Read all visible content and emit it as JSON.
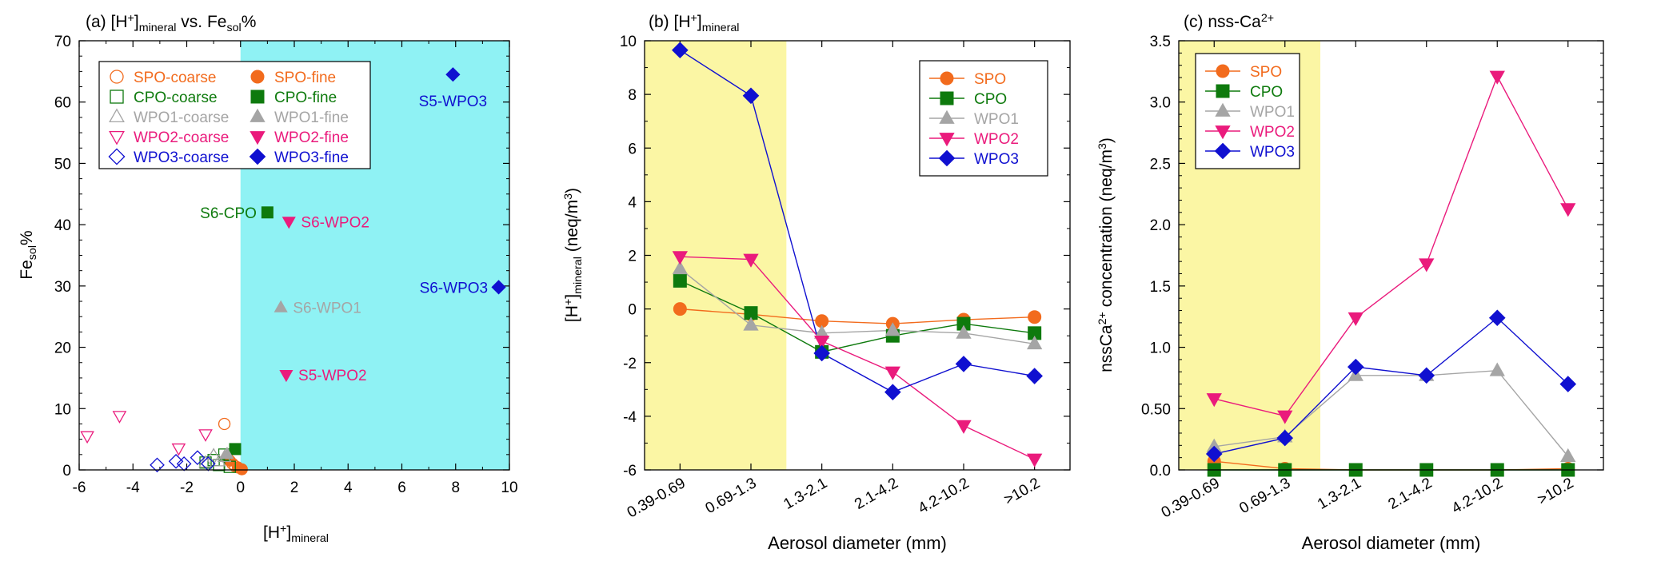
{
  "colors": {
    "SPO": "#f26b1d",
    "CPO": "#0e7a0d",
    "WPO1": "#a5a5a5",
    "WPO2": "#ea1b7c",
    "WPO3": "#1010d0",
    "cyan": "#8ff2f4",
    "yellow": "#fbf6a4",
    "axis": "#000000"
  },
  "chart_data": [
    {
      "id": "a",
      "type": "scatter",
      "title_parts": [
        "(a) [H",
        "+",
        "]",
        "mineral",
        " vs. Fe",
        "sol",
        "%"
      ],
      "xlabel_parts": [
        "[H",
        "+",
        "]",
        "mineral"
      ],
      "ylabel_parts": [
        "Fe",
        "sol",
        "%"
      ],
      "xlim": [
        -6,
        10
      ],
      "ylim": [
        0,
        70
      ],
      "xticks": [
        -6,
        -4,
        -2,
        0,
        2,
        4,
        6,
        8,
        10
      ],
      "xtick_labels": [
        "-6",
        "-4",
        "-2",
        "0",
        "2",
        "4",
        "6",
        "8",
        "10"
      ],
      "yticks": [
        0,
        10,
        20,
        30,
        40,
        50,
        60,
        70
      ],
      "ytick_labels": [
        "0",
        "10",
        "20",
        "30",
        "40",
        "50",
        "60",
        "70"
      ],
      "shaded_region": {
        "x_from": 0,
        "x_to": 10,
        "color_key": "cyan"
      },
      "legend": {
        "position": "top-left",
        "entries": [
          {
            "label": "SPO-coarse",
            "color_key": "SPO",
            "marker": "circle",
            "filled": false
          },
          {
            "label": "SPO-fine",
            "color_key": "SPO",
            "marker": "circle",
            "filled": true
          },
          {
            "label": "CPO-coarse",
            "color_key": "CPO",
            "marker": "square",
            "filled": false
          },
          {
            "label": "CPO-fine",
            "color_key": "CPO",
            "marker": "square",
            "filled": true
          },
          {
            "label": "WPO1-coarse",
            "color_key": "WPO1",
            "marker": "triangle-up",
            "filled": false
          },
          {
            "label": "WPO1-fine",
            "color_key": "WPO1",
            "marker": "triangle-up",
            "filled": true
          },
          {
            "label": "WPO2-coarse",
            "color_key": "WPO2",
            "marker": "triangle-down",
            "filled": false
          },
          {
            "label": "WPO2-fine",
            "color_key": "WPO2",
            "marker": "triangle-down",
            "filled": true
          },
          {
            "label": "WPO3-coarse",
            "color_key": "WPO3",
            "marker": "diamond",
            "filled": false
          },
          {
            "label": "WPO3-fine",
            "color_key": "WPO3",
            "marker": "diamond",
            "filled": true
          }
        ]
      },
      "series": [
        {
          "name": "SPO-coarse",
          "color_key": "SPO",
          "marker": "circle",
          "filled": false,
          "points": [
            [
              -0.6,
              7.5
            ],
            [
              -0.5,
              2.0
            ],
            [
              -0.3,
              1.0
            ],
            [
              -0.2,
              0.6
            ]
          ]
        },
        {
          "name": "SPO-fine",
          "color_key": "SPO",
          "marker": "circle",
          "filled": true,
          "points": [
            [
              -0.4,
              1.5
            ],
            [
              -0.1,
              0.4
            ],
            [
              0.05,
              0.1
            ]
          ]
        },
        {
          "name": "CPO-coarse",
          "color_key": "CPO",
          "marker": "square",
          "filled": false,
          "points": [
            [
              -1.3,
              1.2
            ],
            [
              -1.0,
              1.6
            ],
            [
              -0.8,
              0.8
            ],
            [
              -0.6,
              2.5
            ],
            [
              -0.4,
              0.5
            ]
          ]
        },
        {
          "name": "CPO-fine",
          "color_key": "CPO",
          "marker": "square",
          "filled": true,
          "points": [
            [
              -0.2,
              3.4
            ],
            [
              1.0,
              42.0
            ]
          ]
        },
        {
          "name": "WPO1-coarse",
          "color_key": "WPO1",
          "marker": "triangle-up",
          "filled": false,
          "points": [
            [
              -1.3,
              1.2
            ],
            [
              -1.0,
              2.4
            ],
            [
              -0.8,
              1.4
            ],
            [
              -0.6,
              2.1
            ]
          ]
        },
        {
          "name": "WPO1-fine",
          "color_key": "WPO1",
          "marker": "triangle-up",
          "filled": true,
          "points": [
            [
              -0.5,
              2.6
            ],
            [
              1.5,
              26.5
            ]
          ]
        },
        {
          "name": "WPO2-coarse",
          "color_key": "WPO2",
          "marker": "triangle-down",
          "filled": false,
          "points": [
            [
              -5.7,
              5.5
            ],
            [
              -4.5,
              8.8
            ],
            [
              -2.3,
              3.5
            ],
            [
              -1.3,
              5.8
            ]
          ]
        },
        {
          "name": "WPO2-fine",
          "color_key": "WPO2",
          "marker": "triangle-down",
          "filled": true,
          "points": [
            [
              1.7,
              15.5
            ],
            [
              1.8,
              40.5
            ]
          ]
        },
        {
          "name": "WPO3-coarse",
          "color_key": "WPO3",
          "marker": "diamond",
          "filled": false,
          "points": [
            [
              -3.1,
              0.8
            ],
            [
              -2.4,
              1.4
            ],
            [
              -2.1,
              1.0
            ],
            [
              -1.6,
              2.0
            ],
            [
              -1.2,
              1.0
            ]
          ]
        },
        {
          "name": "WPO3-fine",
          "color_key": "WPO3",
          "marker": "diamond",
          "filled": true,
          "points": [
            [
              7.9,
              64.5
            ],
            [
              9.6,
              29.8
            ]
          ]
        }
      ],
      "annotations": [
        {
          "text": "S6-CPO",
          "color_key": "CPO",
          "x": 1.0,
          "y": 42.0,
          "anchor": "end",
          "dx": -0.4
        },
        {
          "text": "S6-WPO2",
          "color_key": "WPO2",
          "x": 1.8,
          "y": 40.5,
          "anchor": "start",
          "dx": 0.45
        },
        {
          "text": "S6-WPO1",
          "color_key": "WPO1",
          "x": 1.5,
          "y": 26.5,
          "anchor": "start",
          "dx": 0.45
        },
        {
          "text": "S5-WPO2",
          "color_key": "WPO2",
          "x": 1.7,
          "y": 15.5,
          "anchor": "start",
          "dx": 0.45
        },
        {
          "text": "S5-WPO3",
          "color_key": "WPO3",
          "x": 7.9,
          "y": 64.5,
          "anchor": "middle",
          "dx": 0,
          "dy": -4.3
        },
        {
          "text": "S6-WPO3",
          "color_key": "WPO3",
          "x": 9.6,
          "y": 29.8,
          "anchor": "end",
          "dx": -0.4
        }
      ]
    },
    {
      "id": "b",
      "type": "line",
      "title_parts": [
        "(b) [H",
        "+",
        "]",
        "mineral"
      ],
      "xlabel": "Aerosol diameter (mm)",
      "ylabel_parts": [
        "[H",
        "+",
        "]",
        "mineral",
        " (neq/m",
        "3",
        ")"
      ],
      "categories": [
        "0.39-0.69",
        "0.69-1.3",
        "1.3-2.1",
        "2.1-4.2",
        "4.2-10.2",
        ">10.2"
      ],
      "ylim": [
        -6,
        10
      ],
      "yticks": [
        -6,
        -4,
        -2,
        0,
        2,
        4,
        6,
        8,
        10
      ],
      "ytick_labels": [
        "-6",
        "-4",
        "-2",
        "0",
        "2",
        "4",
        "6",
        "8",
        "10"
      ],
      "shaded_categories": [
        0,
        1
      ],
      "legend": {
        "position": "top-right",
        "entries": [
          "SPO",
          "CPO",
          "WPO1",
          "WPO2",
          "WPO3"
        ]
      },
      "series": [
        {
          "name": "SPO",
          "color_key": "SPO",
          "marker": "circle",
          "values": [
            0.0,
            -0.2,
            -0.45,
            -0.55,
            -0.4,
            -0.3
          ]
        },
        {
          "name": "CPO",
          "color_key": "CPO",
          "marker": "square",
          "values": [
            1.05,
            -0.15,
            -1.6,
            -1.0,
            -0.55,
            -0.9
          ]
        },
        {
          "name": "WPO1",
          "color_key": "WPO1",
          "marker": "triangle-up",
          "values": [
            1.5,
            -0.6,
            -0.9,
            -0.8,
            -0.9,
            -1.3
          ]
        },
        {
          "name": "WPO2",
          "color_key": "WPO2",
          "marker": "triangle-down",
          "values": [
            1.95,
            1.85,
            -1.2,
            -2.35,
            -4.35,
            -5.6
          ]
        },
        {
          "name": "WPO3",
          "color_key": "WPO3",
          "marker": "diamond",
          "values": [
            9.65,
            7.95,
            -1.65,
            -3.1,
            -2.05,
            -2.5
          ]
        }
      ]
    },
    {
      "id": "c",
      "type": "line",
      "title_parts": [
        "(c) nss-Ca",
        "2+"
      ],
      "xlabel": "Aerosol diameter (mm)",
      "ylabel_parts": [
        "nssCa",
        "2+",
        " concentration (neq/m",
        "3",
        ")"
      ],
      "categories": [
        "0.39-0.69",
        "0.69-1.3",
        "1.3-2.1",
        "2.1-4.2",
        "4.2-10.2",
        ">10.2"
      ],
      "ylim": [
        0,
        3.5
      ],
      "yticks": [
        0,
        0.5,
        1.0,
        1.5,
        2.0,
        2.5,
        3.0,
        3.5
      ],
      "ytick_labels": [
        "0.0",
        "0.50",
        "1.0",
        "1.5",
        "2.0",
        "2.5",
        "3.0",
        "3.5"
      ],
      "shaded_categories": [
        0,
        1
      ],
      "legend": {
        "position": "top-left",
        "entries": [
          "SPO",
          "CPO",
          "WPO1",
          "WPO2",
          "WPO3"
        ]
      },
      "series": [
        {
          "name": "SPO",
          "color_key": "SPO",
          "marker": "circle",
          "values": [
            0.07,
            0.01,
            0.0,
            0.0,
            0.0,
            0.01
          ]
        },
        {
          "name": "CPO",
          "color_key": "CPO",
          "marker": "square",
          "values": [
            0.0,
            0.0,
            0.0,
            0.0,
            0.0,
            0.0
          ]
        },
        {
          "name": "WPO1",
          "color_key": "WPO1",
          "marker": "triangle-up",
          "values": [
            0.19,
            0.27,
            0.77,
            0.77,
            0.81,
            0.11
          ]
        },
        {
          "name": "WPO2",
          "color_key": "WPO2",
          "marker": "triangle-down",
          "values": [
            0.58,
            0.44,
            1.24,
            1.68,
            3.21,
            2.13
          ]
        },
        {
          "name": "WPO3",
          "color_key": "WPO3",
          "marker": "diamond",
          "values": [
            0.13,
            0.26,
            0.84,
            0.77,
            1.24,
            0.7
          ]
        }
      ]
    }
  ]
}
